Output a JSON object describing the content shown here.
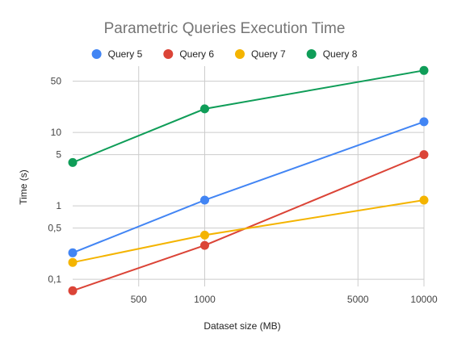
{
  "chart_data": {
    "type": "line",
    "title": "Parametric Queries Execution Time",
    "xlabel": "Dataset size (MB)",
    "ylabel": "Time (s)",
    "x_scale": "log",
    "y_scale": "log",
    "xlim": [
      250,
      10000
    ],
    "ylim": [
      0.08,
      80
    ],
    "x_ticks": [
      {
        "value": 500,
        "label": "500"
      },
      {
        "value": 1000,
        "label": "1000"
      },
      {
        "value": 5000,
        "label": "5000"
      },
      {
        "value": 10000,
        "label": "10000"
      }
    ],
    "y_ticks": [
      {
        "value": 0.1,
        "label": "0,1"
      },
      {
        "value": 0.5,
        "label": "0,5"
      },
      {
        "value": 1,
        "label": "1"
      },
      {
        "value": 5,
        "label": "5"
      },
      {
        "value": 10,
        "label": "10"
      },
      {
        "value": 50,
        "label": "50"
      }
    ],
    "grid": true,
    "legend_position": "top",
    "x": [
      250,
      1000,
      10000
    ],
    "series": [
      {
        "name": "Query 5",
        "color": "#4285F4",
        "values": [
          0.23,
          1.2,
          14
        ]
      },
      {
        "name": "Query 6",
        "color": "#DB4437",
        "values": [
          0.07,
          0.29,
          5.0
        ]
      },
      {
        "name": "Query 7",
        "color": "#F4B400",
        "values": [
          0.17,
          0.4,
          1.2
        ]
      },
      {
        "name": "Query 8",
        "color": "#0F9D58",
        "values": [
          3.9,
          21,
          70
        ]
      }
    ]
  }
}
